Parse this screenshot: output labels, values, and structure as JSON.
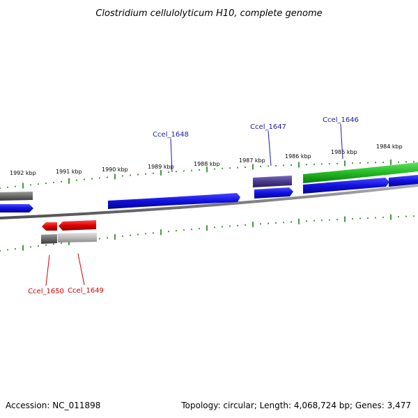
{
  "title": "Clostridium cellulolyticum H10, complete genome",
  "footer": {
    "accession": "Accession: NC_011898",
    "info": "Topology: circular; Length: 4,068,724 bp; Genes: 3,477"
  },
  "colors": {
    "forward_cds": "#1010e0",
    "reverse_cds": "#e00000",
    "gray_feature": "#707070",
    "green_feature": "#22bb22",
    "purple_feature": "#4a3a8a",
    "tick": "#1a7a1a",
    "backbone": "#888888",
    "blue_label": "#1a1aa6",
    "red_label": "#cc0000"
  },
  "scale_labels": [
    "1992 kbp",
    "1991 kbp",
    "1990 kbp",
    "1989 kbp",
    "1988 kbp",
    "1987 kbp",
    "1986 kbp",
    "1985 kbp",
    "1984 kbp"
  ],
  "gene_labels": {
    "ccel_1648": "Ccel_1648",
    "ccel_1647": "Ccel_1647",
    "ccel_1646": "Ccel_1646",
    "ccel_1650": "Ccel_1650",
    "ccel_1649": "Ccel_1649"
  }
}
